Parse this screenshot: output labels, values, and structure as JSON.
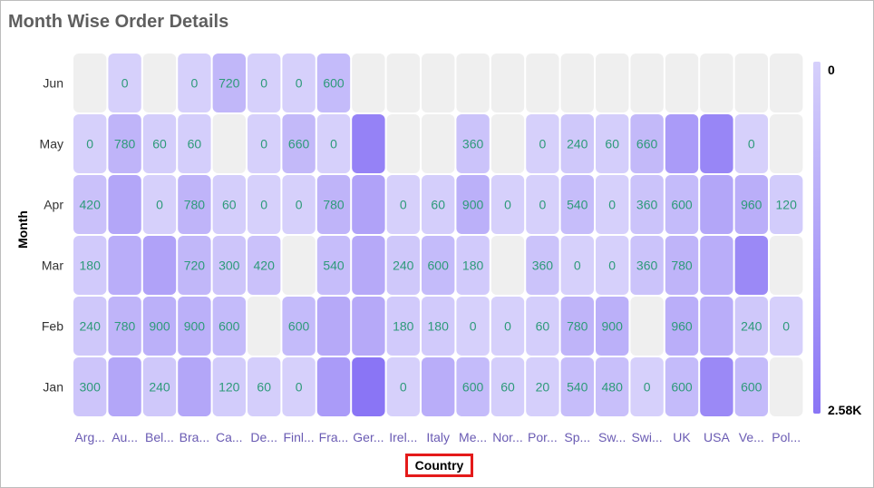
{
  "title": "Month Wise Order Details",
  "chart_data": {
    "type": "heatmap",
    "title": "Month Wise Order Details",
    "xlabel": "Country",
    "ylabel": "Month",
    "x_categories": [
      "Arg...",
      "Au...",
      "Bel...",
      "Bra...",
      "Ca...",
      "De...",
      "Finl...",
      "Fra...",
      "Ger...",
      "Irel...",
      "Italy",
      "Me...",
      "Nor...",
      "Por...",
      "Sp...",
      "Sw...",
      "Swi...",
      "UK",
      "USA",
      "Ve...",
      "Pol..."
    ],
    "y_categories": [
      "Jun",
      "May",
      "Apr",
      "Mar",
      "Feb",
      "Jan"
    ],
    "values": [
      [
        null,
        0,
        null,
        0,
        720,
        0,
        0,
        600,
        null,
        null,
        null,
        null,
        null,
        null,
        null,
        null,
        null,
        null,
        null,
        null,
        null
      ],
      [
        0,
        780,
        60,
        60,
        null,
        0,
        660,
        0,
        2200,
        null,
        null,
        360,
        null,
        0,
        240,
        60,
        660,
        1500,
        2100,
        0,
        null
      ],
      [
        420,
        1200,
        0,
        780,
        60,
        0,
        0,
        780,
        1300,
        0,
        60,
        900,
        0,
        0,
        540,
        0,
        360,
        600,
        1200,
        960,
        120
      ],
      [
        180,
        1000,
        1300,
        720,
        300,
        420,
        null,
        540,
        1100,
        240,
        600,
        180,
        null,
        360,
        0,
        0,
        360,
        780,
        1000,
        2000,
        null
      ],
      [
        240,
        780,
        900,
        900,
        600,
        null,
        600,
        1100,
        1100,
        180,
        180,
        0,
        0,
        60,
        780,
        900,
        null,
        960,
        1000,
        240,
        0
      ],
      [
        300,
        1200,
        240,
        1200,
        120,
        60,
        0,
        1500,
        2580,
        0,
        1000,
        600,
        60,
        20,
        540,
        480,
        0,
        600,
        2000,
        600,
        null
      ]
    ],
    "hidden_labels": [
      [
        false,
        false,
        false,
        false,
        false,
        false,
        false,
        false,
        false,
        false,
        false,
        false,
        false,
        false,
        false,
        false,
        false,
        false,
        false,
        false,
        false
      ],
      [
        false,
        false,
        false,
        false,
        false,
        false,
        false,
        false,
        true,
        false,
        false,
        false,
        false,
        false,
        false,
        false,
        false,
        true,
        true,
        false,
        false
      ],
      [
        false,
        true,
        false,
        false,
        false,
        false,
        false,
        false,
        true,
        false,
        false,
        false,
        false,
        false,
        false,
        false,
        false,
        false,
        true,
        false,
        false
      ],
      [
        false,
        true,
        true,
        false,
        false,
        false,
        false,
        false,
        true,
        false,
        false,
        false,
        false,
        false,
        false,
        false,
        false,
        false,
        true,
        true,
        false
      ],
      [
        false,
        false,
        false,
        false,
        false,
        false,
        false,
        true,
        true,
        false,
        false,
        false,
        false,
        false,
        false,
        false,
        false,
        false,
        true,
        false,
        false
      ],
      [
        false,
        true,
        false,
        true,
        false,
        false,
        false,
        true,
        true,
        false,
        true,
        false,
        false,
        false,
        false,
        false,
        false,
        false,
        true,
        false,
        false
      ]
    ],
    "legend": {
      "min_label": "0",
      "max_label": "2.58K",
      "min": 0,
      "max": 2580,
      "position": "right"
    },
    "colors": {
      "low": "#d6d0fb",
      "high": "#8a75f5",
      "empty": "#efefef"
    }
  }
}
